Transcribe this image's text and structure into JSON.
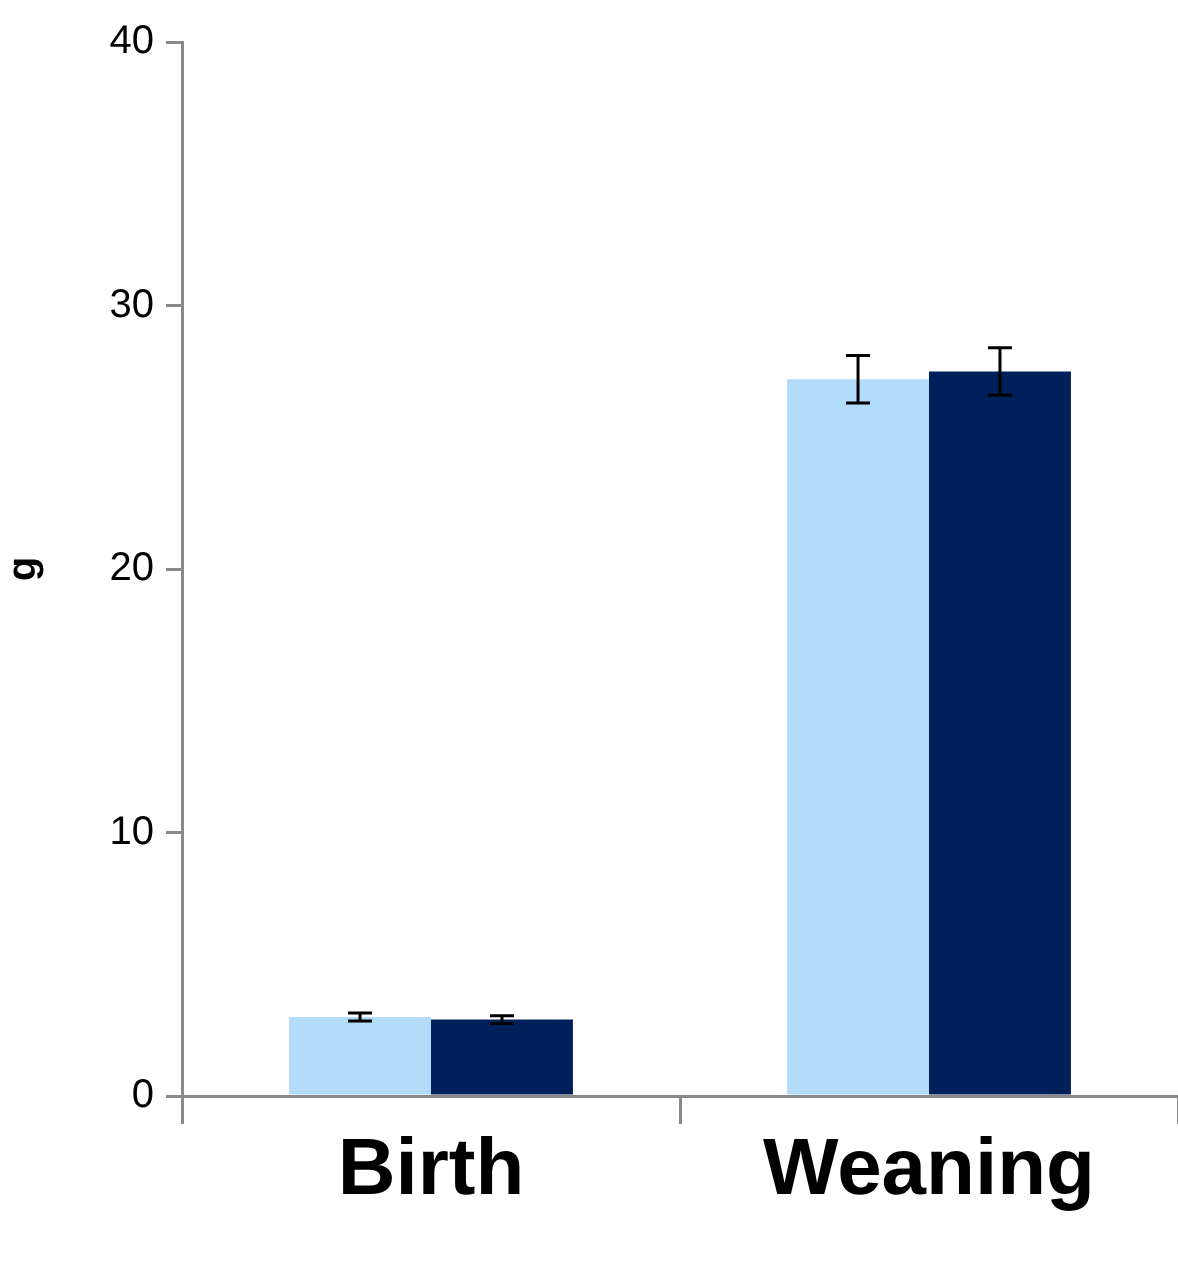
{
  "chart_data": {
    "type": "bar",
    "categories": [
      "Birth",
      "Weaning"
    ],
    "series": [
      {
        "color": "#b3dcfa",
        "values": [
          3.0,
          27.2
        ],
        "errors": [
          0.15,
          0.9
        ]
      },
      {
        "color": "#00205b",
        "values": [
          2.9,
          27.5
        ],
        "errors": [
          0.15,
          0.9
        ]
      }
    ],
    "ylabel": "g",
    "ylim": [
      0,
      40
    ],
    "yticks": [
      0,
      10,
      20,
      30,
      40
    ],
    "grid": false,
    "legend": false
  }
}
